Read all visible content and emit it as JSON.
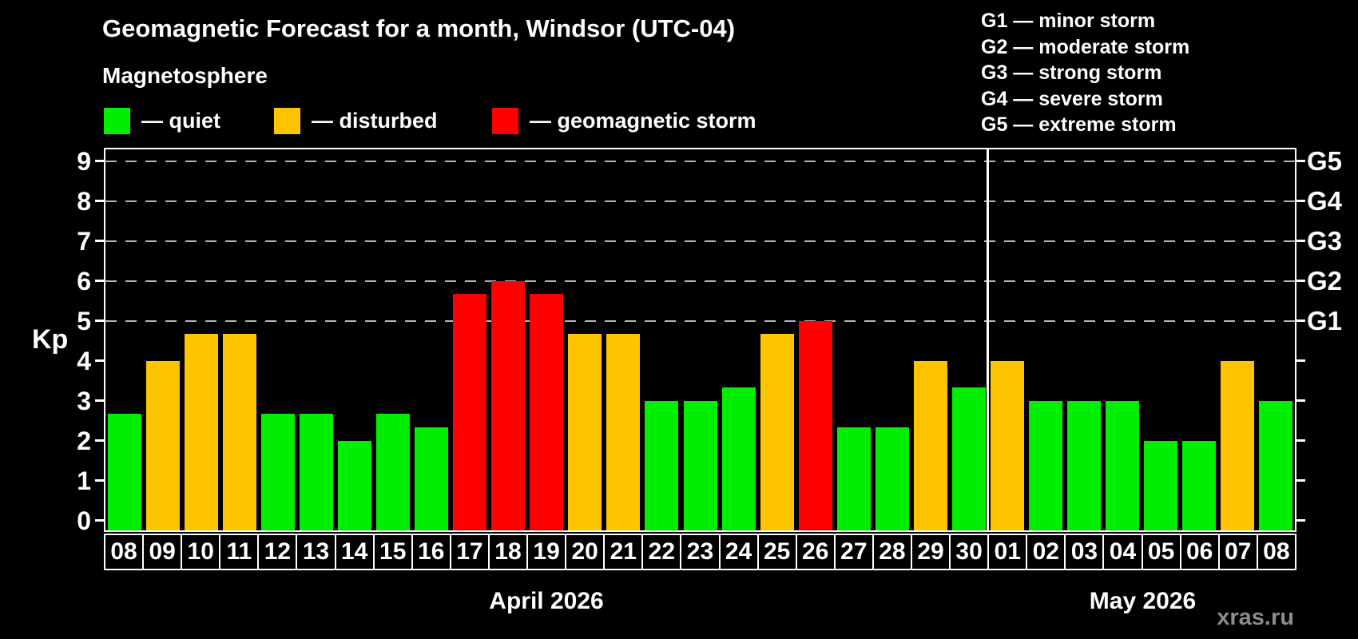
{
  "title": "Geomagnetic Forecast for a month, Windsor (UTC-04)",
  "subtitle": "Magnetosphere",
  "legend": {
    "items": [
      {
        "key": "quiet",
        "label": "— quiet"
      },
      {
        "key": "disturbed",
        "label": "— disturbed"
      },
      {
        "key": "storm",
        "label": "— geomagnetic storm"
      }
    ]
  },
  "g_scale_legend": [
    "G1 — minor storm",
    "G2 — moderate storm",
    "G3 — strong storm",
    "G4 — severe storm",
    "G5 — extreme storm"
  ],
  "watermark": "xras.ru",
  "colors": {
    "quiet": "#00ee00",
    "disturbed": "#ffc400",
    "storm": "#ff0000",
    "background": "#000000",
    "text": "#ffffff",
    "grid": "#b5b5b5",
    "watermark": "#8c8c8c"
  },
  "chart_data": {
    "type": "bar",
    "title": "Geomagnetic Forecast for a month, Windsor (UTC-04)",
    "ylabel": "Kp",
    "ylim": [
      0,
      9.3
    ],
    "y_ticks": [
      0,
      1,
      2,
      3,
      4,
      5,
      6,
      7,
      8,
      9
    ],
    "gridlines_at_kp": [
      5,
      6,
      7,
      8,
      9
    ],
    "grid": "dashed-horizontal",
    "legend_position": "top-left",
    "right_axis_labels": [
      {
        "kp": 5,
        "label": "G1"
      },
      {
        "kp": 6,
        "label": "G2"
      },
      {
        "kp": 7,
        "label": "G3"
      },
      {
        "kp": 8,
        "label": "G4"
      },
      {
        "kp": 9,
        "label": "G5"
      }
    ],
    "months": [
      {
        "label": "April 2026",
        "days": 23
      },
      {
        "label": "May 2026",
        "days": 8
      }
    ],
    "categories": [
      "08",
      "09",
      "10",
      "11",
      "12",
      "13",
      "14",
      "15",
      "16",
      "17",
      "18",
      "19",
      "20",
      "21",
      "22",
      "23",
      "24",
      "25",
      "26",
      "27",
      "28",
      "29",
      "30",
      "01",
      "02",
      "03",
      "04",
      "05",
      "06",
      "07",
      "08"
    ],
    "values": [
      2.67,
      4.0,
      4.67,
      4.67,
      2.67,
      2.67,
      2.0,
      2.67,
      2.33,
      5.67,
      6.0,
      5.67,
      4.67,
      4.67,
      3.0,
      3.0,
      3.33,
      4.67,
      5.0,
      2.33,
      2.33,
      4.0,
      3.33,
      4.0,
      3.0,
      3.0,
      3.0,
      2.0,
      2.0,
      4.0,
      3.0
    ],
    "statuses": [
      "quiet",
      "disturbed",
      "disturbed",
      "disturbed",
      "quiet",
      "quiet",
      "quiet",
      "quiet",
      "quiet",
      "storm",
      "storm",
      "storm",
      "disturbed",
      "disturbed",
      "quiet",
      "quiet",
      "quiet",
      "disturbed",
      "storm",
      "quiet",
      "quiet",
      "disturbed",
      "quiet",
      "disturbed",
      "quiet",
      "quiet",
      "quiet",
      "quiet",
      "quiet",
      "disturbed",
      "quiet"
    ]
  }
}
